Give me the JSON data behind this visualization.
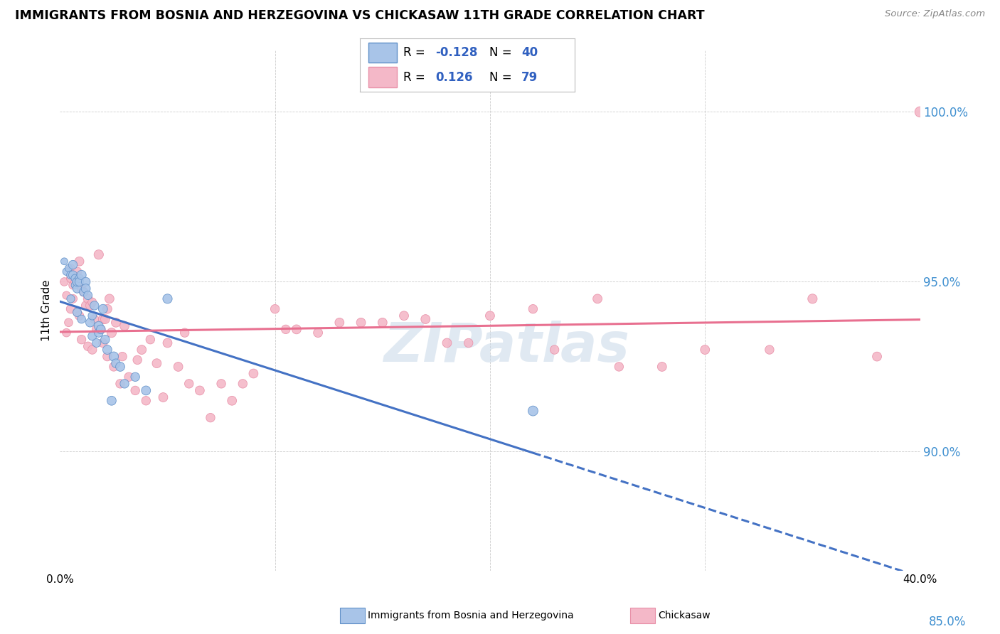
{
  "title": "IMMIGRANTS FROM BOSNIA AND HERZEGOVINA VS CHICKASAW 11TH GRADE CORRELATION CHART",
  "source": "Source: ZipAtlas.com",
  "ylabel": "11th Grade",
  "watermark": "ZIPatlas",
  "r1": "-0.128",
  "n1": "40",
  "r2": "0.126",
  "n2": "79",
  "blue_fill": "#a8c4e8",
  "pink_fill": "#f4b8c8",
  "blue_edge": "#6090c8",
  "pink_edge": "#e890a8",
  "blue_line": "#4472c4",
  "pink_line": "#e87090",
  "legend_text_color": "#3060c0",
  "ytick_color": "#4090d0",
  "xlim": [
    0.0,
    40.0
  ],
  "ylim": [
    86.5,
    101.8
  ],
  "yticks": [
    90.0,
    95.0,
    100.0
  ],
  "ytick_extra": 85.0,
  "blue_x": [
    0.2,
    0.3,
    0.4,
    0.5,
    0.5,
    0.6,
    0.6,
    0.7,
    0.7,
    0.8,
    0.8,
    0.8,
    0.9,
    0.9,
    1.0,
    1.0,
    1.1,
    1.2,
    1.2,
    1.3,
    1.4,
    1.5,
    1.5,
    1.6,
    1.7,
    1.8,
    1.8,
    1.9,
    2.0,
    2.1,
    2.2,
    2.4,
    2.5,
    2.6,
    2.8,
    3.0,
    3.5,
    4.0,
    5.0,
    22.0
  ],
  "blue_y": [
    95.6,
    95.3,
    95.4,
    95.2,
    94.5,
    95.5,
    95.2,
    94.9,
    95.1,
    94.8,
    94.1,
    95.0,
    95.1,
    95.0,
    95.2,
    93.9,
    94.7,
    95.0,
    94.8,
    94.6,
    93.8,
    94.0,
    93.4,
    94.3,
    93.2,
    93.5,
    93.7,
    93.6,
    94.2,
    93.3,
    93.0,
    91.5,
    92.8,
    92.6,
    92.5,
    92.0,
    92.2,
    91.8,
    94.5,
    91.2
  ],
  "blue_s": [
    50,
    60,
    55,
    70,
    65,
    80,
    75,
    60,
    65,
    80,
    75,
    85,
    70,
    80,
    90,
    70,
    75,
    80,
    85,
    75,
    80,
    70,
    75,
    80,
    75,
    80,
    85,
    80,
    85,
    80,
    85,
    85,
    90,
    80,
    85,
    80,
    80,
    85,
    90,
    100
  ],
  "blue_xmax": 22.0,
  "pink_x": [
    0.2,
    0.3,
    0.3,
    0.4,
    0.5,
    0.5,
    0.5,
    0.6,
    0.6,
    0.7,
    0.8,
    0.8,
    0.9,
    0.9,
    1.0,
    1.0,
    1.1,
    1.2,
    1.3,
    1.3,
    1.4,
    1.5,
    1.5,
    1.6,
    1.7,
    1.8,
    1.9,
    2.0,
    2.0,
    2.1,
    2.2,
    2.2,
    2.3,
    2.4,
    2.5,
    2.6,
    2.8,
    2.9,
    3.0,
    3.2,
    3.5,
    3.6,
    3.8,
    4.0,
    4.2,
    4.5,
    4.8,
    5.0,
    5.5,
    5.8,
    6.0,
    6.5,
    7.0,
    7.5,
    8.0,
    8.5,
    9.0,
    10.0,
    11.0,
    12.0,
    13.0,
    15.0,
    16.0,
    17.0,
    18.0,
    20.0,
    22.0,
    23.0,
    25.0,
    28.0,
    30.0,
    35.0,
    38.0,
    40.0,
    10.5,
    14.0,
    19.0,
    26.0,
    33.0
  ],
  "pink_y": [
    95.0,
    93.5,
    94.6,
    93.8,
    94.2,
    95.1,
    95.4,
    94.5,
    94.9,
    95.0,
    94.1,
    95.3,
    95.6,
    94.0,
    94.8,
    93.3,
    94.7,
    94.3,
    93.1,
    94.5,
    94.3,
    93.0,
    94.4,
    93.9,
    93.6,
    95.8,
    93.6,
    93.2,
    93.9,
    93.9,
    92.8,
    94.2,
    94.5,
    93.5,
    92.5,
    93.8,
    92.0,
    92.8,
    93.7,
    92.2,
    91.8,
    92.7,
    93.0,
    91.5,
    93.3,
    92.6,
    91.6,
    93.2,
    92.5,
    93.5,
    92.0,
    91.8,
    91.0,
    92.0,
    91.5,
    92.0,
    92.3,
    94.2,
    93.6,
    93.5,
    93.8,
    93.8,
    94.0,
    93.9,
    93.2,
    94.0,
    94.2,
    93.0,
    94.5,
    92.5,
    93.0,
    94.5,
    92.8,
    100.0,
    93.6,
    93.8,
    93.2,
    92.5,
    93.0
  ],
  "pink_s": [
    70,
    70,
    65,
    70,
    80,
    75,
    70,
    75,
    70,
    75,
    75,
    80,
    85,
    80,
    85,
    80,
    80,
    80,
    80,
    85,
    80,
    80,
    75,
    80,
    80,
    90,
    80,
    80,
    85,
    85,
    80,
    85,
    85,
    90,
    80,
    85,
    80,
    80,
    85,
    80,
    80,
    80,
    85,
    80,
    80,
    85,
    85,
    85,
    85,
    80,
    80,
    85,
    80,
    80,
    85,
    80,
    85,
    80,
    85,
    85,
    85,
    85,
    85,
    85,
    85,
    85,
    80,
    80,
    85,
    85,
    85,
    90,
    85,
    110,
    80,
    85,
    80,
    80,
    80
  ]
}
